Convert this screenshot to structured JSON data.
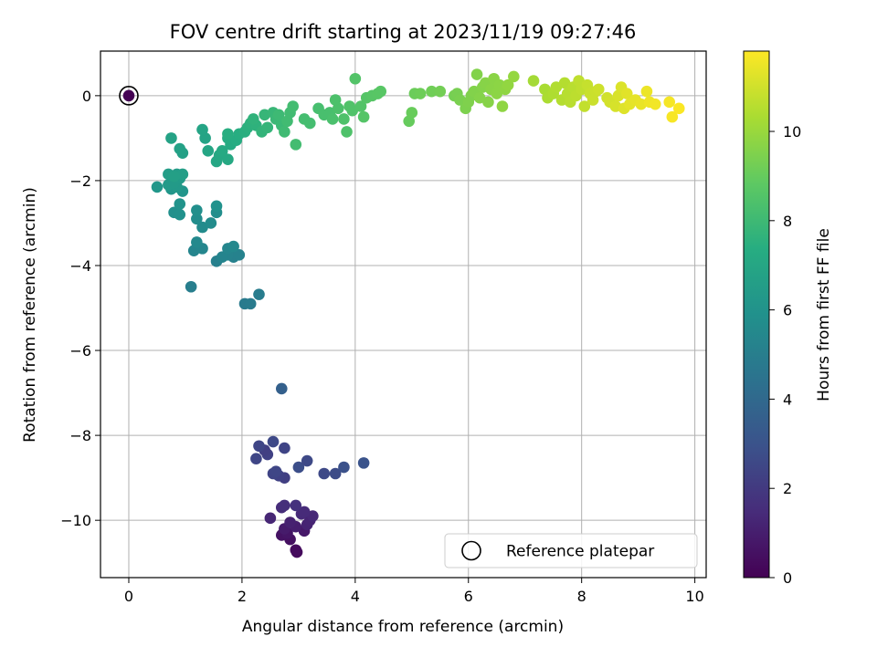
{
  "chart_data": {
    "type": "scatter",
    "title": "FOV centre drift starting at 2023/11/19 09:27:46",
    "xlabel": "Angular distance from reference (arcmin)",
    "ylabel": "Rotation from reference (arcmin)",
    "colorbar_label": "Hours from first FF file",
    "xlim": [
      -0.5,
      10.2
    ],
    "ylim": [
      -11.35,
      1.05
    ],
    "clim": [
      0,
      11.8
    ],
    "colormap": "viridis",
    "grid": true,
    "legend_position": "lower-right",
    "xticks": [
      0,
      2,
      4,
      6,
      8,
      10
    ],
    "yticks": [
      0,
      -2,
      -4,
      -6,
      -8,
      -10
    ],
    "cticks": [
      0,
      2,
      4,
      6,
      8,
      10
    ],
    "xtick_labels": [
      "0",
      "2",
      "4",
      "6",
      "8",
      "10"
    ],
    "ytick_labels": [
      "0",
      "−2",
      "−4",
      "−6",
      "−8",
      "−10"
    ],
    "ctick_labels": [
      "0",
      "2",
      "4",
      "6",
      "8",
      "10"
    ],
    "reference": {
      "label": "Reference platepar",
      "x": 0,
      "y": 0
    },
    "points": [
      {
        "x": 0.0,
        "y": 0.0,
        "h": 0.0
      },
      {
        "x": 2.97,
        "y": -10.75,
        "h": 0.3
      },
      {
        "x": 2.95,
        "y": -10.7,
        "h": 0.35
      },
      {
        "x": 2.85,
        "y": -10.45,
        "h": 0.5
      },
      {
        "x": 2.7,
        "y": -10.35,
        "h": 0.6
      },
      {
        "x": 2.8,
        "y": -10.3,
        "h": 0.7
      },
      {
        "x": 3.1,
        "y": -10.25,
        "h": 0.8
      },
      {
        "x": 2.75,
        "y": -10.2,
        "h": 0.9
      },
      {
        "x": 2.95,
        "y": -10.15,
        "h": 1.0
      },
      {
        "x": 2.85,
        "y": -10.05,
        "h": 1.1
      },
      {
        "x": 3.15,
        "y": -10.1,
        "h": 1.15
      },
      {
        "x": 3.2,
        "y": -10.0,
        "h": 1.2
      },
      {
        "x": 2.5,
        "y": -9.95,
        "h": 1.3
      },
      {
        "x": 3.25,
        "y": -9.9,
        "h": 1.35
      },
      {
        "x": 3.05,
        "y": -9.85,
        "h": 1.4
      },
      {
        "x": 3.1,
        "y": -9.8,
        "h": 1.45
      },
      {
        "x": 2.7,
        "y": -9.7,
        "h": 1.5
      },
      {
        "x": 2.75,
        "y": -9.65,
        "h": 1.6
      },
      {
        "x": 2.95,
        "y": -9.65,
        "h": 1.7
      },
      {
        "x": 2.75,
        "y": -9.0,
        "h": 2.2
      },
      {
        "x": 2.65,
        "y": -8.95,
        "h": 2.3
      },
      {
        "x": 2.55,
        "y": -8.9,
        "h": 2.4
      },
      {
        "x": 2.6,
        "y": -8.85,
        "h": 2.5
      },
      {
        "x": 3.45,
        "y": -8.9,
        "h": 2.6
      },
      {
        "x": 3.65,
        "y": -8.9,
        "h": 2.7
      },
      {
        "x": 3.0,
        "y": -8.75,
        "h": 2.8
      },
      {
        "x": 3.8,
        "y": -8.75,
        "h": 2.9
      },
      {
        "x": 4.15,
        "y": -8.65,
        "h": 3.0
      },
      {
        "x": 3.15,
        "y": -8.6,
        "h": 2.6
      },
      {
        "x": 2.25,
        "y": -8.55,
        "h": 2.5
      },
      {
        "x": 2.45,
        "y": -8.45,
        "h": 2.3
      },
      {
        "x": 2.4,
        "y": -8.35,
        "h": 2.2
      },
      {
        "x": 2.75,
        "y": -8.3,
        "h": 2.4
      },
      {
        "x": 2.3,
        "y": -8.25,
        "h": 2.5
      },
      {
        "x": 2.55,
        "y": -8.15,
        "h": 2.6
      },
      {
        "x": 2.7,
        "y": -6.9,
        "h": 3.6
      },
      {
        "x": 2.05,
        "y": -4.9,
        "h": 4.8
      },
      {
        "x": 2.15,
        "y": -4.9,
        "h": 4.85
      },
      {
        "x": 2.3,
        "y": -4.68,
        "h": 4.9
      },
      {
        "x": 1.1,
        "y": -4.5,
        "h": 5.0
      },
      {
        "x": 1.55,
        "y": -3.9,
        "h": 5.1
      },
      {
        "x": 1.85,
        "y": -3.8,
        "h": 5.15
      },
      {
        "x": 1.95,
        "y": -3.75,
        "h": 5.2
      },
      {
        "x": 1.75,
        "y": -3.75,
        "h": 5.25
      },
      {
        "x": 1.65,
        "y": -3.8,
        "h": 5.3
      },
      {
        "x": 1.15,
        "y": -3.65,
        "h": 5.35
      },
      {
        "x": 1.3,
        "y": -3.6,
        "h": 5.4
      },
      {
        "x": 1.75,
        "y": -3.6,
        "h": 5.4
      },
      {
        "x": 1.85,
        "y": -3.55,
        "h": 5.45
      },
      {
        "x": 1.2,
        "y": -3.45,
        "h": 5.5
      },
      {
        "x": 1.3,
        "y": -3.1,
        "h": 5.6
      },
      {
        "x": 1.45,
        "y": -3.0,
        "h": 5.65
      },
      {
        "x": 1.2,
        "y": -2.9,
        "h": 5.7
      },
      {
        "x": 1.55,
        "y": -2.75,
        "h": 5.75
      },
      {
        "x": 1.2,
        "y": -2.7,
        "h": 5.8
      },
      {
        "x": 0.8,
        "y": -2.75,
        "h": 5.85
      },
      {
        "x": 0.9,
        "y": -2.8,
        "h": 5.9
      },
      {
        "x": 1.55,
        "y": -2.6,
        "h": 5.95
      },
      {
        "x": 0.9,
        "y": -2.55,
        "h": 6.0
      },
      {
        "x": 0.95,
        "y": -2.25,
        "h": 6.1
      },
      {
        "x": 0.75,
        "y": -2.2,
        "h": 6.15
      },
      {
        "x": 0.5,
        "y": -2.15,
        "h": 6.2
      },
      {
        "x": 0.85,
        "y": -2.15,
        "h": 6.3
      },
      {
        "x": 0.7,
        "y": -2.1,
        "h": 6.35
      },
      {
        "x": 0.8,
        "y": -2.05,
        "h": 6.4
      },
      {
        "x": 0.9,
        "y": -1.95,
        "h": 6.45
      },
      {
        "x": 0.85,
        "y": -1.85,
        "h": 6.5
      },
      {
        "x": 0.7,
        "y": -1.85,
        "h": 6.55
      },
      {
        "x": 0.95,
        "y": -1.85,
        "h": 6.6
      },
      {
        "x": 0.8,
        "y": -1.9,
        "h": 6.65
      },
      {
        "x": 0.95,
        "y": -1.35,
        "h": 6.7
      },
      {
        "x": 0.9,
        "y": -1.25,
        "h": 6.75
      },
      {
        "x": 0.75,
        "y": -1.0,
        "h": 6.8
      },
      {
        "x": 1.35,
        "y": -1.0,
        "h": 6.85
      },
      {
        "x": 1.3,
        "y": -0.8,
        "h": 6.9
      },
      {
        "x": 1.4,
        "y": -1.3,
        "h": 6.95
      },
      {
        "x": 1.55,
        "y": -1.55,
        "h": 7.0
      },
      {
        "x": 1.6,
        "y": -1.4,
        "h": 7.05
      },
      {
        "x": 1.75,
        "y": -1.5,
        "h": 7.1
      },
      {
        "x": 1.65,
        "y": -1.3,
        "h": 7.15
      },
      {
        "x": 1.8,
        "y": -1.15,
        "h": 7.2
      },
      {
        "x": 1.75,
        "y": -1.0,
        "h": 7.25
      },
      {
        "x": 1.9,
        "y": -1.05,
        "h": 7.3
      },
      {
        "x": 1.95,
        "y": -0.9,
        "h": 7.35
      },
      {
        "x": 1.75,
        "y": -0.9,
        "h": 7.4
      },
      {
        "x": 2.05,
        "y": -0.85,
        "h": 7.45
      },
      {
        "x": 2.1,
        "y": -0.75,
        "h": 7.5
      },
      {
        "x": 2.15,
        "y": -0.65,
        "h": 7.55
      },
      {
        "x": 2.25,
        "y": -0.7,
        "h": 7.6
      },
      {
        "x": 2.2,
        "y": -0.55,
        "h": 7.65
      },
      {
        "x": 2.35,
        "y": -0.85,
        "h": 7.7
      },
      {
        "x": 2.45,
        "y": -0.75,
        "h": 7.75
      },
      {
        "x": 2.4,
        "y": -0.45,
        "h": 7.8
      },
      {
        "x": 2.55,
        "y": -0.4,
        "h": 7.85
      },
      {
        "x": 2.6,
        "y": -0.55,
        "h": 7.9
      },
      {
        "x": 2.7,
        "y": -0.7,
        "h": 7.95
      },
      {
        "x": 2.65,
        "y": -0.45,
        "h": 8.0
      },
      {
        "x": 2.75,
        "y": -0.85,
        "h": 8.05
      },
      {
        "x": 2.8,
        "y": -0.6,
        "h": 8.1
      },
      {
        "x": 2.85,
        "y": -0.4,
        "h": 8.1
      },
      {
        "x": 2.9,
        "y": -0.25,
        "h": 8.15
      },
      {
        "x": 2.95,
        "y": -1.15,
        "h": 8.15
      },
      {
        "x": 3.1,
        "y": -0.55,
        "h": 8.2
      },
      {
        "x": 3.2,
        "y": -0.65,
        "h": 8.2
      },
      {
        "x": 3.35,
        "y": -0.3,
        "h": 8.25
      },
      {
        "x": 3.45,
        "y": -0.45,
        "h": 8.3
      },
      {
        "x": 3.55,
        "y": -0.4,
        "h": 8.3
      },
      {
        "x": 3.6,
        "y": -0.55,
        "h": 8.35
      },
      {
        "x": 3.7,
        "y": -0.3,
        "h": 8.4
      },
      {
        "x": 3.65,
        "y": -0.1,
        "h": 8.4
      },
      {
        "x": 3.8,
        "y": -0.55,
        "h": 8.45
      },
      {
        "x": 3.85,
        "y": -0.85,
        "h": 8.45
      },
      {
        "x": 3.9,
        "y": -0.25,
        "h": 8.5
      },
      {
        "x": 3.95,
        "y": -0.35,
        "h": 8.5
      },
      {
        "x": 4.0,
        "y": 0.4,
        "h": 8.55
      },
      {
        "x": 4.1,
        "y": -0.25,
        "h": 8.55
      },
      {
        "x": 4.15,
        "y": -0.5,
        "h": 8.6
      },
      {
        "x": 4.2,
        "y": -0.05,
        "h": 8.6
      },
      {
        "x": 4.3,
        "y": 0.0,
        "h": 8.65
      },
      {
        "x": 4.4,
        "y": 0.05,
        "h": 8.7
      },
      {
        "x": 4.45,
        "y": 0.1,
        "h": 8.7
      },
      {
        "x": 4.95,
        "y": -0.6,
        "h": 9.0
      },
      {
        "x": 5.0,
        "y": -0.4,
        "h": 9.05
      },
      {
        "x": 5.05,
        "y": 0.05,
        "h": 9.1
      },
      {
        "x": 5.15,
        "y": 0.05,
        "h": 9.15
      },
      {
        "x": 5.35,
        "y": 0.1,
        "h": 9.2
      },
      {
        "x": 5.5,
        "y": 0.1,
        "h": 9.25
      },
      {
        "x": 5.75,
        "y": 0.0,
        "h": 9.3
      },
      {
        "x": 5.8,
        "y": 0.05,
        "h": 9.35
      },
      {
        "x": 5.85,
        "y": -0.1,
        "h": 9.4
      },
      {
        "x": 5.95,
        "y": -0.3,
        "h": 9.45
      },
      {
        "x": 6.0,
        "y": -0.15,
        "h": 9.5
      },
      {
        "x": 6.05,
        "y": 0.0,
        "h": 9.5
      },
      {
        "x": 6.1,
        "y": 0.1,
        "h": 9.55
      },
      {
        "x": 6.15,
        "y": 0.5,
        "h": 9.55
      },
      {
        "x": 6.2,
        "y": -0.05,
        "h": 9.6
      },
      {
        "x": 6.25,
        "y": 0.2,
        "h": 9.6
      },
      {
        "x": 6.3,
        "y": 0.3,
        "h": 9.65
      },
      {
        "x": 6.35,
        "y": -0.15,
        "h": 9.65
      },
      {
        "x": 6.4,
        "y": 0.15,
        "h": 9.7
      },
      {
        "x": 6.45,
        "y": 0.4,
        "h": 9.7
      },
      {
        "x": 6.5,
        "y": 0.05,
        "h": 9.75
      },
      {
        "x": 6.55,
        "y": 0.25,
        "h": 9.75
      },
      {
        "x": 6.6,
        "y": -0.25,
        "h": 9.8
      },
      {
        "x": 6.65,
        "y": 0.15,
        "h": 9.8
      },
      {
        "x": 6.7,
        "y": 0.25,
        "h": 9.85
      },
      {
        "x": 6.8,
        "y": 0.45,
        "h": 9.9
      },
      {
        "x": 7.15,
        "y": 0.35,
        "h": 10.2
      },
      {
        "x": 7.35,
        "y": 0.15,
        "h": 10.3
      },
      {
        "x": 7.4,
        "y": -0.05,
        "h": 10.35
      },
      {
        "x": 7.5,
        "y": 0.05,
        "h": 10.4
      },
      {
        "x": 7.55,
        "y": 0.2,
        "h": 10.45
      },
      {
        "x": 7.65,
        "y": -0.1,
        "h": 10.5
      },
      {
        "x": 7.7,
        "y": 0.3,
        "h": 10.5
      },
      {
        "x": 7.75,
        "y": 0.05,
        "h": 10.55
      },
      {
        "x": 7.8,
        "y": -0.15,
        "h": 10.6
      },
      {
        "x": 7.85,
        "y": 0.2,
        "h": 10.6
      },
      {
        "x": 7.9,
        "y": 0.0,
        "h": 10.65
      },
      {
        "x": 7.95,
        "y": 0.35,
        "h": 10.7
      },
      {
        "x": 8.0,
        "y": 0.15,
        "h": 10.7
      },
      {
        "x": 8.05,
        "y": -0.25,
        "h": 10.75
      },
      {
        "x": 8.1,
        "y": 0.25,
        "h": 10.8
      },
      {
        "x": 8.15,
        "y": 0.05,
        "h": 10.85
      },
      {
        "x": 8.2,
        "y": -0.1,
        "h": 10.9
      },
      {
        "x": 8.25,
        "y": 0.1,
        "h": 10.9
      },
      {
        "x": 8.3,
        "y": 0.15,
        "h": 10.95
      },
      {
        "x": 8.45,
        "y": -0.05,
        "h": 11.0
      },
      {
        "x": 8.5,
        "y": -0.15,
        "h": 11.05
      },
      {
        "x": 8.6,
        "y": -0.25,
        "h": 11.1
      },
      {
        "x": 8.65,
        "y": 0.0,
        "h": 11.15
      },
      {
        "x": 8.7,
        "y": 0.2,
        "h": 11.2
      },
      {
        "x": 8.75,
        "y": -0.3,
        "h": 11.25
      },
      {
        "x": 8.8,
        "y": 0.05,
        "h": 11.3
      },
      {
        "x": 8.85,
        "y": -0.2,
        "h": 11.35
      },
      {
        "x": 8.95,
        "y": -0.1,
        "h": 11.4
      },
      {
        "x": 9.05,
        "y": -0.2,
        "h": 11.45
      },
      {
        "x": 9.15,
        "y": 0.1,
        "h": 11.5
      },
      {
        "x": 9.2,
        "y": -0.15,
        "h": 11.55
      },
      {
        "x": 9.3,
        "y": -0.2,
        "h": 11.6
      },
      {
        "x": 9.55,
        "y": -0.15,
        "h": 11.65
      },
      {
        "x": 9.6,
        "y": -0.5,
        "h": 11.7
      },
      {
        "x": 9.72,
        "y": -0.3,
        "h": 11.75
      }
    ]
  }
}
